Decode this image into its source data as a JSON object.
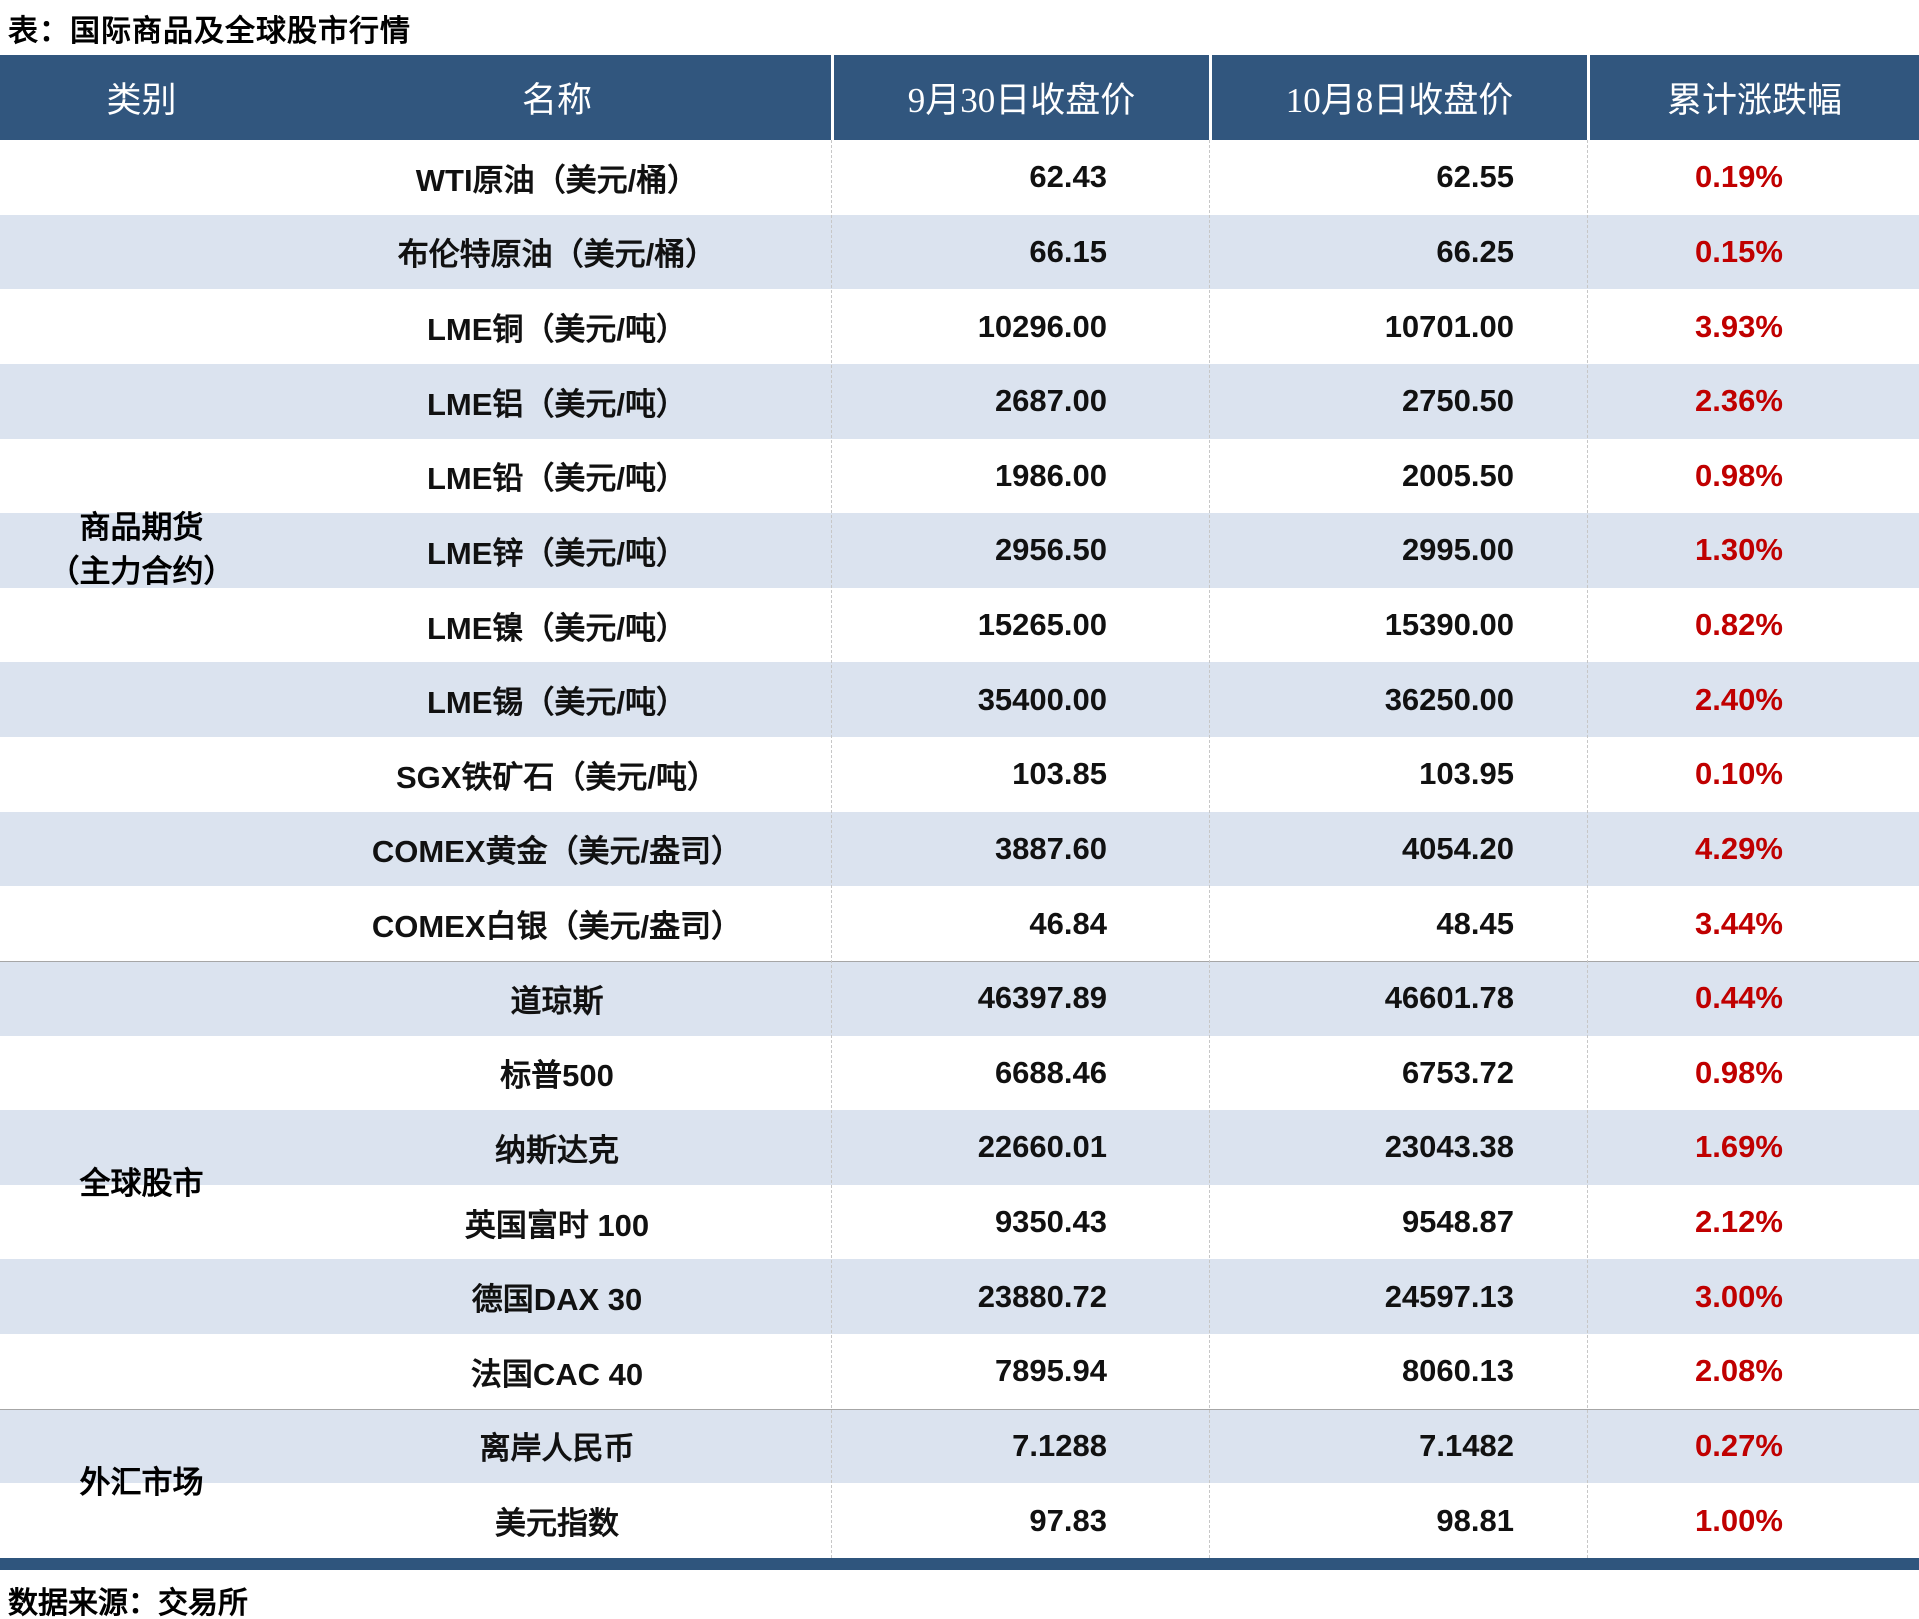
{
  "title": "表：国际商品及全球股市行情",
  "source": "数据来源：交易所",
  "colors": {
    "header_bg": "#31567e",
    "band_bg": "#dbe3ef",
    "pct_red": "#c00000",
    "divider_gray": "#a6a6a6",
    "bottom_bar": "#2f557d"
  },
  "table": {
    "columns": [
      "类别",
      "名称",
      "9月30日收盘价",
      "10月8日收盘价",
      "累计涨跌幅"
    ],
    "sections": [
      {
        "category_lines": [
          "商品期货",
          "（主力合约）"
        ],
        "rows": [
          {
            "name": "WTI原油（美元/桶）",
            "close_0930": "62.43",
            "close_1008": "62.55",
            "change": "0.19%"
          },
          {
            "name": "布伦特原油（美元/桶）",
            "close_0930": "66.15",
            "close_1008": "66.25",
            "change": "0.15%"
          },
          {
            "name": "LME铜（美元/吨）",
            "close_0930": "10296.00",
            "close_1008": "10701.00",
            "change": "3.93%"
          },
          {
            "name": "LME铝（美元/吨）",
            "close_0930": "2687.00",
            "close_1008": "2750.50",
            "change": "2.36%"
          },
          {
            "name": "LME铅（美元/吨）",
            "close_0930": "1986.00",
            "close_1008": "2005.50",
            "change": "0.98%"
          },
          {
            "name": "LME锌（美元/吨）",
            "close_0930": "2956.50",
            "close_1008": "2995.00",
            "change": "1.30%"
          },
          {
            "name": "LME镍（美元/吨）",
            "close_0930": "15265.00",
            "close_1008": "15390.00",
            "change": "0.82%"
          },
          {
            "name": "LME锡（美元/吨）",
            "close_0930": "35400.00",
            "close_1008": "36250.00",
            "change": "2.40%"
          },
          {
            "name": "SGX铁矿石（美元/吨）",
            "close_0930": "103.85",
            "close_1008": "103.95",
            "change": "0.10%"
          },
          {
            "name": "COMEX黄金（美元/盎司）",
            "close_0930": "3887.60",
            "close_1008": "4054.20",
            "change": "4.29%"
          },
          {
            "name": "COMEX白银（美元/盎司）",
            "close_0930": "46.84",
            "close_1008": "48.45",
            "change": "3.44%"
          }
        ]
      },
      {
        "category_lines": [
          "全球股市"
        ],
        "rows": [
          {
            "name": "道琼斯",
            "close_0930": "46397.89",
            "close_1008": "46601.78",
            "change": "0.44%"
          },
          {
            "name": "标普500",
            "close_0930": "6688.46",
            "close_1008": "6753.72",
            "change": "0.98%"
          },
          {
            "name": "纳斯达克",
            "close_0930": "22660.01",
            "close_1008": "23043.38",
            "change": "1.69%"
          },
          {
            "name": "英国富时 100",
            "close_0930": "9350.43",
            "close_1008": "9548.87",
            "change": "2.12%"
          },
          {
            "name": "德国DAX 30",
            "close_0930": "23880.72",
            "close_1008": "24597.13",
            "change": "3.00%"
          },
          {
            "name": "法国CAC 40",
            "close_0930": "7895.94",
            "close_1008": "8060.13",
            "change": "2.08%"
          }
        ]
      },
      {
        "category_lines": [
          "外汇市场"
        ],
        "rows": [
          {
            "name": "离岸人民币",
            "close_0930": "7.1288",
            "close_1008": "7.1482",
            "change": "0.27%"
          },
          {
            "name": "美元指数",
            "close_0930": "97.83",
            "close_1008": "98.81",
            "change": "1.00%"
          }
        ]
      }
    ]
  }
}
